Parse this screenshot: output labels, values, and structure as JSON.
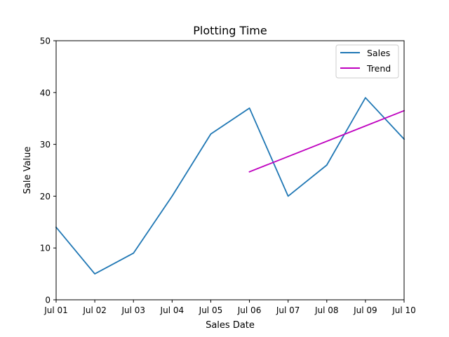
{
  "chart_data": {
    "type": "line",
    "title": "Plotting Time",
    "xlabel": "Sales Date",
    "ylabel": "Sale Value",
    "x": [
      "Jul 01",
      "Jul 02",
      "Jul 03",
      "Jul 04",
      "Jul 05",
      "Jul 06",
      "Jul 07",
      "Jul 08",
      "Jul 09",
      "Jul 10"
    ],
    "xlim": [
      "Jul 01",
      "Jul 10"
    ],
    "ylim": [
      0,
      50
    ],
    "yticks": [
      0,
      10,
      20,
      30,
      40,
      50
    ],
    "grid": false,
    "legend_position": "top-right",
    "series": [
      {
        "name": "Sales",
        "color": "#1f77b4",
        "x": [
          "Jul 01",
          "Jul 02",
          "Jul 03",
          "Jul 04",
          "Jul 05",
          "Jul 06",
          "Jul 07",
          "Jul 08",
          "Jul 09",
          "Jul 10"
        ],
        "values": [
          14,
          5,
          9,
          20,
          32,
          37,
          20,
          26,
          39,
          31
        ]
      },
      {
        "name": "Trend",
        "color": "#bf00bf",
        "x": [
          "Jul 06",
          "Jul 10"
        ],
        "values": [
          24.7,
          36.5
        ]
      }
    ]
  }
}
